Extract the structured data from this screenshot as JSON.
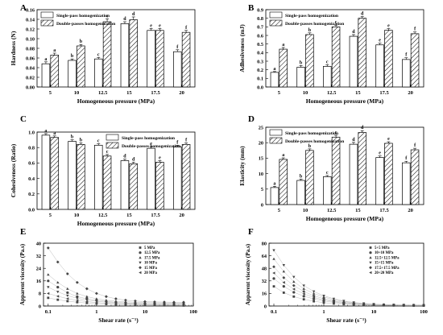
{
  "chart_data": [
    {
      "panel": "A",
      "type": "bar",
      "categories": [
        "5",
        "10",
        "12.5",
        "15",
        "17.5",
        "20"
      ],
      "xlabel": "Homogeneous pressure (MPa)",
      "ylabel": "Hardness (N)",
      "ylim": [
        0,
        0.16
      ],
      "yticks": [
        "0.00",
        "0.02",
        "0.04",
        "0.06",
        "0.08",
        "0.10",
        "0.12",
        "0.14",
        "0.16"
      ],
      "legend": "top-left",
      "series": [
        {
          "name": "Single-pass homogenization",
          "values": [
            0.048,
            0.055,
            0.058,
            0.131,
            0.117,
            0.073
          ],
          "errors": [
            0.004,
            0.003,
            0.003,
            0.004,
            0.004,
            0.004
          ],
          "labels": [
            "a",
            "b",
            "c",
            "d",
            "e",
            "f"
          ]
        },
        {
          "name": "Double-passes homogenization",
          "values": [
            0.066,
            0.085,
            0.135,
            0.139,
            0.117,
            0.113
          ],
          "errors": [
            0.004,
            0.003,
            0.006,
            0.006,
            0.004,
            0.004
          ],
          "labels": [
            "a",
            "b",
            "c",
            "d",
            "e",
            "f"
          ]
        }
      ]
    },
    {
      "panel": "B",
      "type": "bar",
      "categories": [
        "5",
        "10",
        "12.5",
        "15",
        "17.5",
        "20"
      ],
      "xlabel": "Homogeneous pressure (MPa)",
      "ylabel": "Adhesiveness (mJ)",
      "ylim": [
        0,
        0.9
      ],
      "yticks": [
        "0.0",
        "0.1",
        "0.2",
        "0.3",
        "0.4",
        "0.5",
        "0.6",
        "0.7",
        "0.8",
        "0.9"
      ],
      "legend": "top-left",
      "series": [
        {
          "name": "Single-pass homogenization",
          "values": [
            0.17,
            0.23,
            0.24,
            0.59,
            0.49,
            0.32
          ],
          "errors": [
            0.01,
            0.02,
            0.02,
            0.02,
            0.02,
            0.02
          ],
          "labels": [
            "a",
            "b",
            "c",
            "d",
            "e",
            "f"
          ]
        },
        {
          "name": "Double-passes homogenization",
          "values": [
            0.44,
            0.61,
            0.7,
            0.8,
            0.66,
            0.62
          ],
          "errors": [
            0.02,
            0.02,
            0.02,
            0.02,
            0.02,
            0.02
          ],
          "labels": [
            "a",
            "b",
            "c",
            "d",
            "e",
            "f"
          ]
        }
      ]
    },
    {
      "panel": "C",
      "type": "bar",
      "categories": [
        "5",
        "10",
        "12.5",
        "15",
        "17.5",
        "20"
      ],
      "xlabel": "Homogeneous pressure (MPa)",
      "ylabel": "Cohesiveness (Ratio)",
      "ylim": [
        0,
        1.0
      ],
      "yticks": [
        "0.0",
        "0.2",
        "0.4",
        "0.6",
        "0.8",
        "1.0"
      ],
      "legend": "top-right",
      "series": [
        {
          "name": "Single-pass homogenization",
          "values": [
            0.96,
            0.88,
            0.83,
            0.63,
            0.79,
            0.81
          ],
          "errors": [
            0.02,
            0.02,
            0.02,
            0.02,
            0.02,
            0.02
          ],
          "labels": [
            "a",
            "b",
            "c",
            "d",
            "e",
            "f"
          ]
        },
        {
          "name": "Double-passes homogenization",
          "values": [
            0.93,
            0.84,
            0.69,
            0.59,
            0.61,
            0.84
          ],
          "errors": [
            0.02,
            0.02,
            0.02,
            0.02,
            0.02,
            0.02
          ],
          "labels": [
            "a",
            "b",
            "c",
            "d",
            "e",
            "f"
          ]
        }
      ]
    },
    {
      "panel": "D",
      "type": "bar",
      "categories": [
        "5",
        "10",
        "12.5",
        "15",
        "17.5",
        "20"
      ],
      "xlabel": "Homogeneous pressure (MPa)",
      "ylabel": "Elasticity (mm)",
      "ylim": [
        0,
        25
      ],
      "yticks": [
        "0",
        "5",
        "10",
        "15",
        "20",
        "25"
      ],
      "legend": "top-left",
      "series": [
        {
          "name": "Single-pass homogenization",
          "values": [
            5.5,
            7.8,
            9.0,
            19.5,
            15.2,
            13.5
          ],
          "errors": [
            0.4,
            0.4,
            0.4,
            0.6,
            0.5,
            0.5
          ],
          "labels": [
            "a",
            "b",
            "c",
            "d",
            "e",
            "f"
          ]
        },
        {
          "name": "Double-passes homogenization",
          "values": [
            14.6,
            17.5,
            21.8,
            23.3,
            19.8,
            17.7
          ],
          "errors": [
            0.5,
            0.5,
            0.6,
            0.6,
            0.5,
            0.5
          ],
          "labels": [
            "a",
            "b",
            "c",
            "d",
            "e",
            "f"
          ]
        }
      ]
    },
    {
      "panel": "E",
      "type": "scatter",
      "xlabel": "Shear rate (s⁻¹)",
      "ylabel": "Apparent viscosity (Pa.s)",
      "xscale": "log",
      "xlim": [
        0.08,
        100
      ],
      "ylim": [
        0,
        40
      ],
      "xticks": [
        "0.1",
        "1",
        "10",
        "100"
      ],
      "yticks": [
        "0",
        "8",
        "16",
        "24",
        "32",
        "40"
      ],
      "legend": "top-right",
      "x": [
        0.1,
        0.158,
        0.251,
        0.398,
        0.631,
        1,
        1.585,
        2.512,
        3.981,
        6.31,
        10,
        15.85,
        25.12,
        39.81,
        63.1
      ],
      "series": [
        {
          "name": "5 MPa",
          "values": [
            5.2,
            4.0,
            3.1,
            2.4,
            1.9,
            1.5,
            1.2,
            1.0,
            0.8,
            0.7,
            0.6,
            0.5,
            0.4,
            0.4,
            0.3
          ]
        },
        {
          "name": "12.5 MPa",
          "values": [
            16.0,
            12.0,
            8.5,
            6.0,
            4.6,
            3.6,
            2.9,
            2.4,
            2.0,
            1.8,
            1.6,
            1.5,
            1.4,
            1.3,
            1.3
          ]
        },
        {
          "name": "17.5 MPa",
          "values": [
            20.0,
            15.0,
            11.0,
            8.0,
            6.0,
            4.6,
            3.7,
            3.1,
            2.7,
            2.4,
            2.2,
            2.1,
            2.0,
            2.0,
            1.9
          ]
        },
        {
          "name": "10 MPa",
          "values": [
            12.0,
            9.0,
            6.6,
            4.9,
            3.8,
            3.0,
            2.4,
            2.0,
            1.7,
            1.5,
            1.4,
            1.3,
            1.2,
            1.2,
            1.1
          ]
        },
        {
          "name": "15 MPa",
          "values": [
            37.0,
            28.0,
            20.5,
            15.0,
            11.0,
            8.0,
            6.0,
            4.6,
            3.7,
            3.2,
            2.8,
            2.6,
            2.5,
            2.4,
            2.4
          ]
        },
        {
          "name": "20 MPa",
          "values": [
            8.0,
            6.2,
            4.7,
            3.6,
            2.8,
            2.2,
            1.8,
            1.5,
            1.3,
            1.1,
            1.0,
            0.9,
            0.9,
            0.8,
            0.8
          ]
        }
      ]
    },
    {
      "panel": "F",
      "type": "scatter",
      "xlabel": "Shear rate (s⁻¹)",
      "ylabel": "Apparent viscosity (Pa.s)",
      "xscale": "log",
      "xlim": [
        0.08,
        100
      ],
      "ylim": [
        0,
        80
      ],
      "xticks": [
        "0.1",
        "1",
        "10",
        "100"
      ],
      "yticks": [
        "0",
        "16",
        "32",
        "48",
        "64",
        "80"
      ],
      "legend": "top-right",
      "x": [
        0.1,
        0.158,
        0.251,
        0.398,
        0.631,
        1,
        1.585,
        2.512,
        3.981,
        6.31,
        10,
        15.85,
        25.12,
        39.81,
        63.1,
        100
      ],
      "series": [
        {
          "name": "5+5 MPa",
          "values": [
            25.0,
            17.0,
            12.0,
            8.5,
            6.0,
            4.3,
            3.1,
            2.3,
            1.7,
            1.3,
            1.0,
            0.8,
            0.7,
            0.6,
            0.5,
            0.5
          ]
        },
        {
          "name": "10+10 MPa",
          "values": [
            35.0,
            25.0,
            17.5,
            12.5,
            9.0,
            6.5,
            4.7,
            3.4,
            2.5,
            1.9,
            1.5,
            1.2,
            1.0,
            0.9,
            0.8,
            0.7
          ]
        },
        {
          "name": "12.5+12.5 MPa",
          "values": [
            60.0,
            44.0,
            31.0,
            22.0,
            16.0,
            11.5,
            8.2,
            5.8,
            4.1,
            3.0,
            2.2,
            1.7,
            1.4,
            1.2,
            1.1,
            1.0
          ]
        },
        {
          "name": "15+15 MPa",
          "values": [
            71.0,
            52.0,
            37.0,
            26.0,
            18.5,
            13.0,
            9.2,
            6.5,
            4.6,
            3.3,
            2.4,
            1.8,
            1.5,
            1.3,
            1.2,
            1.1
          ]
        },
        {
          "name": "17.5+17.5 MPa",
          "values": [
            50.0,
            36.0,
            26.0,
            18.5,
            13.0,
            9.3,
            6.6,
            4.7,
            3.4,
            2.5,
            1.9,
            1.5,
            1.2,
            1.1,
            1.0,
            0.9
          ]
        },
        {
          "name": "20+20 MPa",
          "values": [
            42.0,
            30.0,
            21.5,
            15.5,
            11.0,
            7.8,
            5.6,
            4.0,
            2.9,
            2.1,
            1.6,
            1.3,
            1.1,
            1.0,
            0.9,
            0.8
          ]
        }
      ]
    }
  ]
}
